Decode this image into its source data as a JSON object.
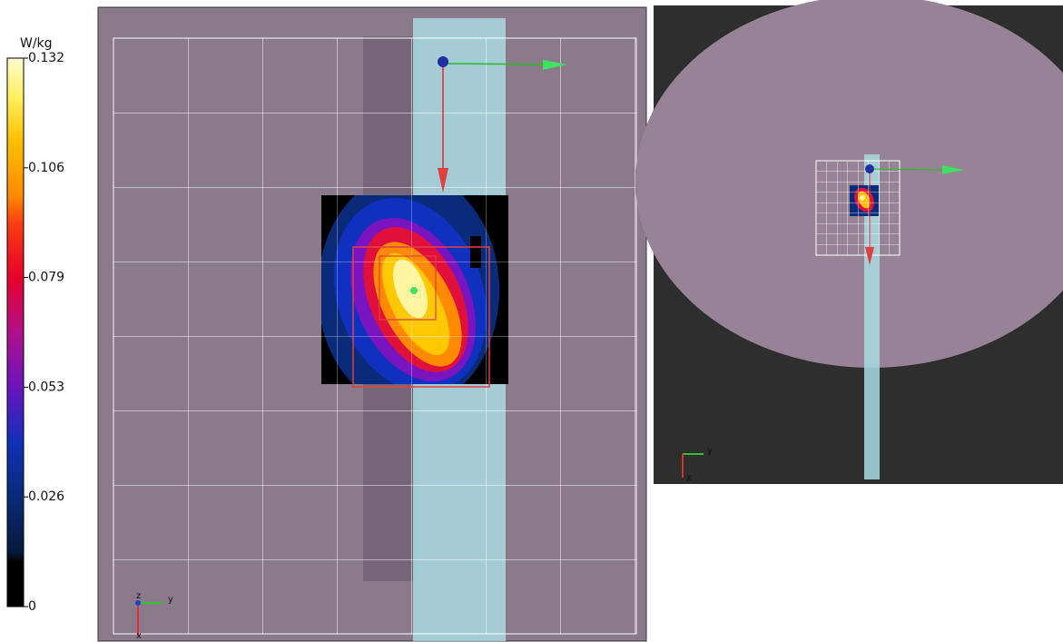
{
  "colorbar": {
    "unit": "W/kg",
    "ticks": [
      "0.132",
      "0.106",
      "0.079",
      "0.053",
      "0.026",
      "0"
    ]
  },
  "main_view": {
    "axes": {
      "z": "z",
      "y": "y",
      "x": "x"
    }
  },
  "overview": {
    "axes": {
      "y": "y",
      "x": "x"
    }
  }
}
